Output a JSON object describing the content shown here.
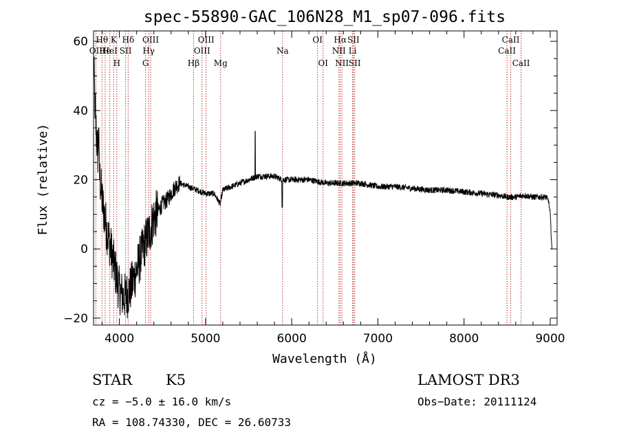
{
  "chart_data": {
    "type": "line",
    "title": "spec-55890-GAC_106N28_M1_sp07-096.fits",
    "xlabel": "Wavelength (Å)",
    "ylabel": "Flux (relative)",
    "xlim": [
      3700,
      9080
    ],
    "ylim": [
      -22,
      63
    ],
    "xticks": [
      4000,
      5000,
      6000,
      7000,
      8000,
      9000
    ],
    "yticks": [
      -20,
      0,
      20,
      40,
      60
    ],
    "xtick_labels": [
      "4000",
      "5000",
      "6000",
      "7000",
      "8000",
      "9000"
    ],
    "ytick_labels": [
      "−20",
      "0",
      "20",
      "40",
      "60"
    ],
    "grid": false,
    "line_color": "#000000",
    "marker_color": "#b03030",
    "spectrum_knots": {
      "x": [
        3700,
        3720,
        3760,
        3800,
        3850,
        3900,
        3950,
        4000,
        4050,
        4100,
        4150,
        4200,
        4250,
        4300,
        4350,
        4400,
        4450,
        4500,
        4550,
        4600,
        4650,
        4700,
        4800,
        4900,
        5000,
        5100,
        5170,
        5200,
        5300,
        5400,
        5500,
        5600,
        5700,
        5800,
        5890,
        6000,
        6200,
        6400,
        6600,
        6800,
        7000,
        7200,
        7400,
        7600,
        7800,
        8000,
        8200,
        8400,
        8500,
        8600,
        8700,
        8800,
        8900,
        8950,
        8980,
        9000,
        9020
      ],
      "y": [
        55,
        38,
        24,
        14,
        6,
        0,
        -6,
        -12,
        -14,
        -13,
        -10,
        -6,
        -2,
        2,
        5,
        9,
        11,
        13,
        14,
        16,
        18,
        19,
        18,
        17,
        16,
        16,
        13,
        17,
        18,
        19,
        20,
        21,
        21,
        21,
        20,
        20,
        20,
        19,
        19,
        19,
        18,
        18,
        17.5,
        17,
        17,
        16.5,
        16,
        15.5,
        15,
        15,
        15.5,
        15,
        15,
        15,
        14,
        10,
        0
      ]
    },
    "spikes": [
      {
        "x": 5577,
        "y": 34
      },
      {
        "x": 5890,
        "y": 12
      },
      {
        "x": 3760,
        "y": 35
      },
      {
        "x": 3720,
        "y": 45
      }
    ],
    "line_markers": [
      {
        "x": 3727,
        "label": "OII",
        "row": 2
      },
      {
        "x": 3798,
        "label": "Hθ",
        "row": 1
      },
      {
        "x": 3835,
        "label": "He",
        "row": 2
      },
      {
        "x": 3889,
        "label": "HeI",
        "row": 2
      },
      {
        "x": 3934,
        "label": "K",
        "row": 1
      },
      {
        "x": 3970,
        "label": "H",
        "row": 3
      },
      {
        "x": 4072,
        "label": "SII",
        "row": 2
      },
      {
        "x": 4102,
        "label": "Hδ",
        "row": 1
      },
      {
        "x": 4304,
        "label": "G",
        "row": 3
      },
      {
        "x": 4340,
        "label": "Hγ",
        "row": 2
      },
      {
        "x": 4363,
        "label": "OIII",
        "row": 1
      },
      {
        "x": 4861,
        "label": "Hβ",
        "row": 3
      },
      {
        "x": 4959,
        "label": "OIII",
        "row": 2
      },
      {
        "x": 5007,
        "label": "OIII",
        "row": 1
      },
      {
        "x": 5175,
        "label": "Mg",
        "row": 3
      },
      {
        "x": 5894,
        "label": "Na",
        "row": 2
      },
      {
        "x": 6300,
        "label": "OI",
        "row": 1
      },
      {
        "x": 6364,
        "label": "OI",
        "row": 3
      },
      {
        "x": 6548,
        "label": "NII",
        "row": 2
      },
      {
        "x": 6563,
        "label": "Hα",
        "row": 1
      },
      {
        "x": 6583,
        "label": "NII",
        "row": 3
      },
      {
        "x": 6707,
        "label": "Li",
        "row": 2
      },
      {
        "x": 6716,
        "label": "SII",
        "row": 1
      },
      {
        "x": 6731,
        "label": "SII",
        "row": 3
      },
      {
        "x": 8498,
        "label": "CaII",
        "row": 2
      },
      {
        "x": 8542,
        "label": "CaII",
        "row": 1
      },
      {
        "x": 8662,
        "label": "CaII",
        "row": 3
      }
    ]
  },
  "footer": {
    "object_class": "STAR",
    "subclass": "K5",
    "survey": "LAMOST DR3",
    "cz": "cz = −5.0 ± 16.0 km/s",
    "obs_date": "Obs−Date: 20111124",
    "radec": "RA = 108.74330, DEC =  26.60733"
  }
}
